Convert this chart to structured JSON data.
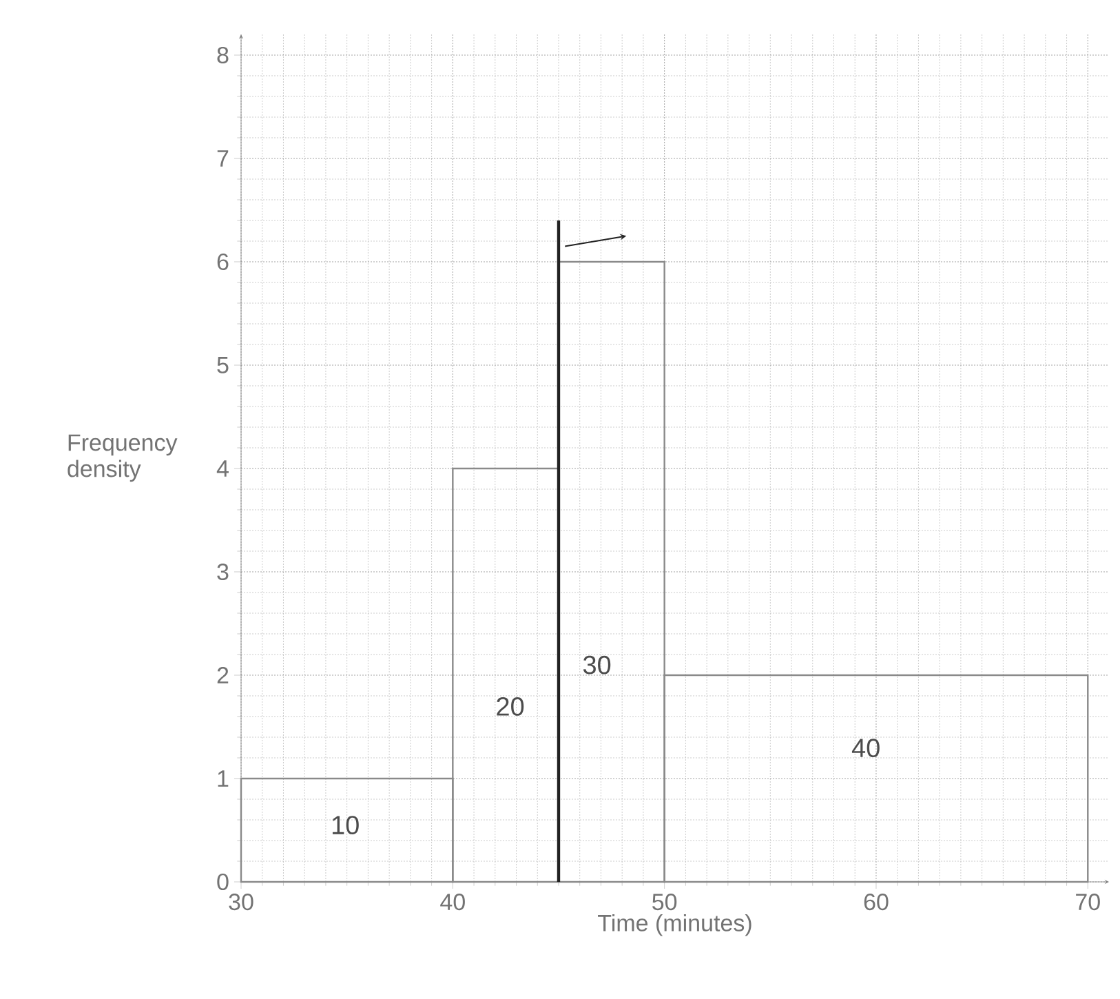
{
  "chart_data": {
    "type": "histogram",
    "xlabel": "Time (minutes)",
    "ylabel": "Frequency density",
    "bins": [
      30,
      40,
      45,
      50,
      70
    ],
    "values": [
      1,
      4,
      6,
      2
    ],
    "color": "#8a8a8a",
    "xlim": [
      30,
      71
    ],
    "ylim": [
      0,
      8.2
    ],
    "xticks": [
      30,
      40,
      50,
      60,
      70
    ],
    "yticks": [
      0,
      1,
      2,
      3,
      4,
      5,
      6,
      7,
      8
    ],
    "grid": true,
    "ref_lines": [
      {
        "axis": "x",
        "value": 45,
        "label": null,
        "color": "#222222"
      }
    ],
    "annotations": [
      "10",
      "20",
      "30",
      "40"
    ]
  }
}
